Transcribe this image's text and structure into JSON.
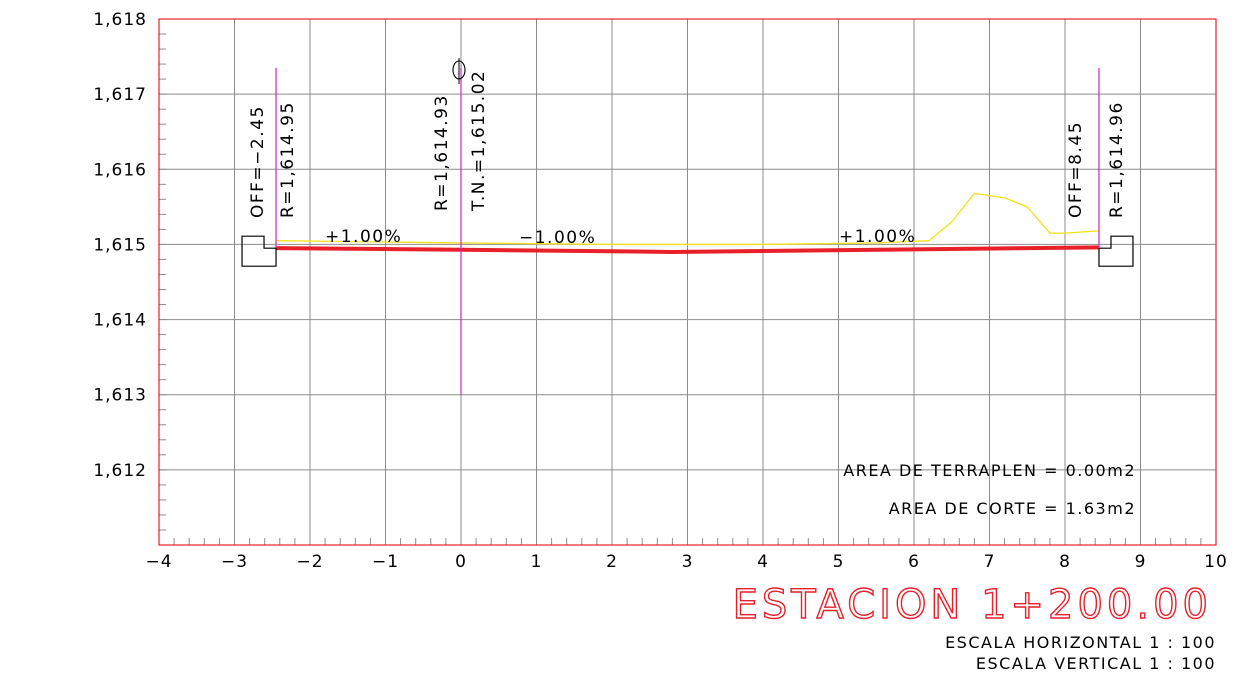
{
  "chart_data": {
    "type": "line",
    "title": "ESTACION 1+200.00",
    "xlabel": "",
    "ylabel": "",
    "xlim": [
      -4,
      10
    ],
    "ylim": [
      1611,
      1618
    ],
    "x_ticks": [
      -4,
      -3,
      -2,
      -1,
      0,
      1,
      2,
      3,
      4,
      5,
      6,
      7,
      8,
      9,
      10
    ],
    "x_tick_labels": [
      "−4",
      "−3",
      "−2",
      "−1",
      "0",
      "1",
      "2",
      "3",
      "4",
      "5",
      "6",
      "7",
      "8",
      "9",
      "10"
    ],
    "y_ticks": [
      1612,
      1613,
      1614,
      1615,
      1616,
      1617,
      1618
    ],
    "y_tick_labels": [
      "1,612",
      "1,613",
      "1,614",
      "1,615",
      "1,616",
      "1,617",
      "1,618"
    ],
    "grid": true,
    "series": [
      {
        "role": "design-section",
        "color": "#e8202a",
        "x": [
          -2.45,
          0,
          2.8,
          8.45
        ],
        "y": [
          1614.95,
          1614.93,
          1614.9,
          1614.96
        ]
      },
      {
        "role": "natural-ground",
        "color": "#f2e21a",
        "x": [
          -2.45,
          0,
          2,
          4,
          5.5,
          6.2,
          6.5,
          6.8,
          7.2,
          7.5,
          7.8,
          8.0,
          8.45
        ],
        "y": [
          1615.05,
          1615.02,
          1615.0,
          1615.0,
          1615.02,
          1615.05,
          1615.3,
          1615.68,
          1615.62,
          1615.5,
          1615.15,
          1615.15,
          1615.18
        ]
      }
    ],
    "vertical_markers": [
      {
        "x": -2.45,
        "y_from": 1614.95,
        "y_to": 1617.35,
        "color": "#cc22cc"
      },
      {
        "x": 0,
        "y_from": 1613.0,
        "y_to": 1617.35,
        "color": "#cc22cc"
      },
      {
        "x": 8.45,
        "y_from": 1614.96,
        "y_to": 1617.35,
        "color": "#cc22cc"
      }
    ],
    "annotations": {
      "left_offset": "OFF=−2.45",
      "left_elevation": "R=1,614.95",
      "center_elevation": "R=1,614.93",
      "center_ground": "T.N.=1,615.02",
      "right_offset": "OFF=8.45",
      "right_elevation": "R=1,614.96",
      "slope_left": "+1.00%",
      "slope_center": "−1.00%",
      "slope_right": "+1.00%"
    },
    "areas": {
      "fill_label": "AREA DE TERRAPLEN  =  0.00m2",
      "cut_label": "AREA DE CORTE  =  1.63m2"
    }
  },
  "footer": {
    "station_title": "ESTACION 1+200.00",
    "scale_horizontal": "ESCALA HORIZONTAL 1 : 100",
    "scale_vertical": "ESCALA VERTICAL 1 : 100"
  },
  "colors": {
    "frame": "#e8202a",
    "grid": "#8c8c8c",
    "design": "#e8202a",
    "ground": "#f2e21a",
    "marker": "#cc22cc"
  }
}
